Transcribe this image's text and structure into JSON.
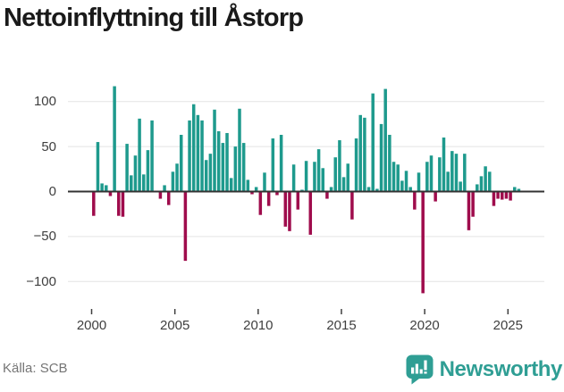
{
  "title": "Nettoinflyttning till Åstorp",
  "source_label": "Källa: SCB",
  "logo": {
    "name": "Newsworthy",
    "icon": "newsworthy-speech-bubble-chart-icon"
  },
  "colors": {
    "positive_bar": "#1e9a8d",
    "negative_bar": "#9f0c4c",
    "grid_line": "#e4e4e4",
    "zero_axis": "#333333",
    "tick_mark": "#3f3f3f",
    "axis_text": "#3f3f3f",
    "title_text": "#1a1a1a",
    "source_text": "#757575",
    "logo_teal": "#2f9e94"
  },
  "chart_data": {
    "type": "bar",
    "title": "Nettoinflyttning till Åstorp",
    "frequency": "quarterly",
    "period_start": "2000 Q1",
    "period_end": "2025 Q3",
    "xlabel": "",
    "ylabel": "",
    "ylim": [
      -128,
      128
    ],
    "grid": "horizontal",
    "y_ticks": [
      100,
      50,
      0,
      -50,
      -100
    ],
    "y_tick_labels": [
      "100",
      "50",
      "0",
      "−50",
      "−100"
    ],
    "x_tick_years": [
      2000,
      2005,
      2010,
      2015,
      2020,
      2025
    ],
    "x_tick_labels": [
      "2000",
      "2005",
      "2010",
      "2015",
      "2020",
      "2025"
    ],
    "values": [
      -27,
      55,
      9,
      7,
      -5,
      117,
      -27,
      -28,
      53,
      18,
      40,
      81,
      19,
      46,
      79,
      1,
      -8,
      7,
      -15,
      22,
      31,
      63,
      -77,
      79,
      97,
      85,
      79,
      35,
      42,
      91,
      67,
      54,
      65,
      15,
      50,
      92,
      54,
      13,
      -3,
      5,
      -26,
      21,
      -16,
      59,
      -4,
      63,
      -39,
      -44,
      30,
      -20,
      2,
      34,
      -48,
      33,
      47,
      26,
      -8,
      5,
      38,
      57,
      16,
      31,
      -31,
      59,
      85,
      82,
      5,
      109,
      3,
      75,
      114,
      63,
      33,
      30,
      12,
      23,
      5,
      -20,
      21,
      -113,
      33,
      40,
      -11,
      38,
      60,
      22,
      45,
      42,
      11,
      42,
      -43,
      -28,
      8,
      17,
      28,
      22,
      -16,
      -8,
      -9,
      -8,
      -10,
      5,
      3
    ]
  }
}
